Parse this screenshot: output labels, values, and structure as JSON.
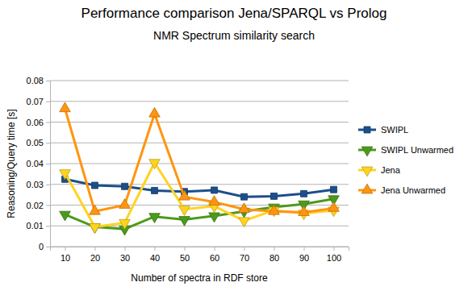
{
  "chart_data": {
    "type": "line",
    "title": "Performance comparison Jena/SPARQL vs Prolog",
    "subtitle": "NMR Spectrum similarity search",
    "x_label": "Number of spectra in RDF store",
    "y_label": "Reasoning/Query time [s]",
    "categories": [
      "10",
      "20",
      "30",
      "40",
      "50",
      "60",
      "70",
      "80",
      "90",
      "100"
    ],
    "ylim": [
      0,
      0.08
    ],
    "yticks": [
      0,
      0.01,
      0.02,
      0.03,
      0.04,
      0.05,
      0.06,
      0.07,
      0.08
    ],
    "grid": true,
    "legend": "right",
    "series": [
      {
        "name": "SWIPL",
        "color": "#1c4f8a",
        "marker": "square",
        "line_style": "solid",
        "values": [
          0.0325,
          0.0295,
          0.029,
          0.027,
          0.0265,
          0.0272,
          0.024,
          0.0243,
          0.0255,
          0.0275
        ]
      },
      {
        "name": "SWIPL Unwarmed",
        "color": "#4c9a1a",
        "marker": "triangle-down",
        "line_style": "solid",
        "values": [
          0.0155,
          0.0095,
          0.0085,
          0.0145,
          0.013,
          0.0148,
          0.017,
          0.019,
          0.0205,
          0.023
        ]
      },
      {
        "name": "Jena",
        "color": "#ffd320",
        "marker": "triangle-down",
        "line_style": "solid",
        "values": [
          0.0355,
          0.0095,
          0.0115,
          0.0405,
          0.018,
          0.0195,
          0.0125,
          0.0175,
          0.016,
          0.0175
        ]
      },
      {
        "name": "Jena Unwarmed",
        "color": "#ff950e",
        "marker": "triangle-up",
        "line_style": "solid",
        "values": [
          0.0665,
          0.017,
          0.02,
          0.064,
          0.024,
          0.0215,
          0.018,
          0.017,
          0.0165,
          0.0185
        ]
      }
    ]
  }
}
